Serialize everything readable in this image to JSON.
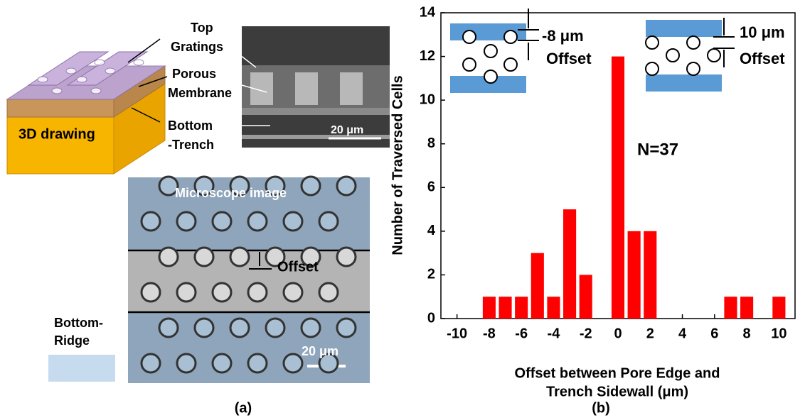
{
  "chart_data": {
    "type": "bar",
    "x": [
      -8,
      -7,
      -6,
      -5,
      -4,
      -3,
      -2,
      0,
      1,
      2,
      7,
      8,
      10
    ],
    "values": [
      1,
      1,
      1,
      3,
      1,
      5,
      2,
      12,
      4,
      4,
      1,
      1,
      1
    ],
    "color": "#ff0000",
    "xlim": [
      -11,
      11
    ],
    "xticks": [
      -10,
      -8,
      -6,
      -4,
      -2,
      0,
      2,
      4,
      6,
      8,
      10
    ],
    "ylim": [
      0,
      14
    ],
    "yticks": [
      0,
      2,
      4,
      6,
      8,
      10,
      12,
      14
    ],
    "ylabel": "Number of Traversed Cells",
    "xlabel": [
      "Offset between Pore Edge and",
      "Trench Sidewall (μm)"
    ],
    "annotations": [
      "N=37",
      "-8 μm",
      "Offset",
      "10 μm",
      "Offset"
    ],
    "panel_label": "(b)"
  },
  "panel_a": {
    "labels": [
      "Top",
      "Gratings",
      "Porous",
      "Membrane",
      "Bottom",
      "-Trench",
      "3D drawing",
      "20 μm",
      "Microscope image",
      "Offset",
      "Bottom-",
      "Ridge",
      "20 μm"
    ],
    "panel_label": "(a)"
  }
}
